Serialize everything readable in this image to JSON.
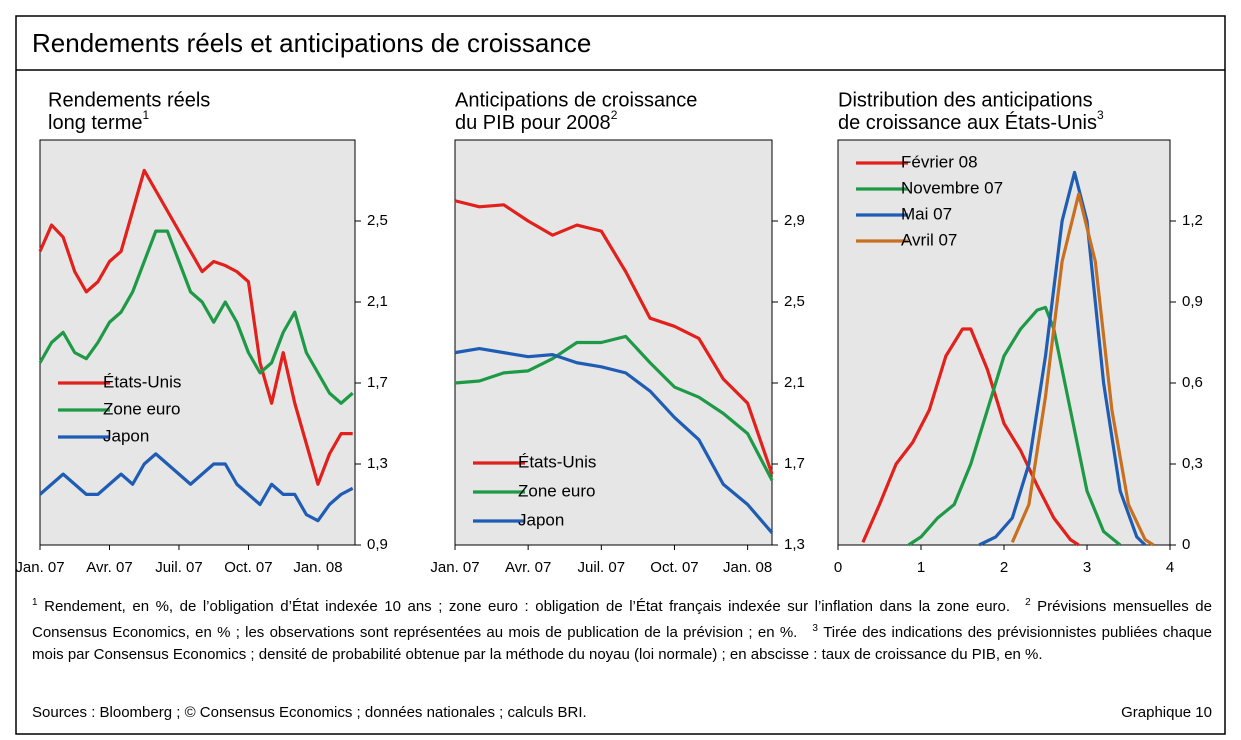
{
  "title": "Rendements réels et anticipations de croissance",
  "chart_data": [
    {
      "type": "line",
      "title": [
        "Rendements réels",
        "long terme"
      ],
      "title_note": "1",
      "x": [
        0,
        0.5,
        1,
        1.5,
        2,
        2.5,
        3,
        3.5,
        4,
        4.5,
        5,
        5.5,
        6,
        6.5,
        7,
        7.5,
        8,
        8.5,
        9,
        9.5,
        10,
        10.5,
        11,
        11.5,
        12,
        12.5,
        13,
        13.5
      ],
      "xlim": [
        0,
        13.6
      ],
      "xticks": [
        {
          "value": 0,
          "label": "Jan. 07"
        },
        {
          "value": 3,
          "label": "Avr. 07"
        },
        {
          "value": 6,
          "label": "Juil. 07"
        },
        {
          "value": 9,
          "label": "Oct. 07"
        },
        {
          "value": 12,
          "label": "Jan. 08"
        }
      ],
      "ylim": [
        0.9,
        2.9
      ],
      "yticks": [
        {
          "value": 0.9,
          "label": "0,9"
        },
        {
          "value": 1.3,
          "label": "1,3"
        },
        {
          "value": 1.7,
          "label": "1,7"
        },
        {
          "value": 2.1,
          "label": "2,1"
        },
        {
          "value": 2.5,
          "label": "2,5"
        }
      ],
      "legend": "center-left",
      "series": [
        {
          "name": "États-Unis",
          "color": "#e2211c",
          "values": [
            2.35,
            2.48,
            2.42,
            2.25,
            2.15,
            2.2,
            2.3,
            2.35,
            2.55,
            2.75,
            2.65,
            2.55,
            2.45,
            2.35,
            2.25,
            2.3,
            2.28,
            2.25,
            2.2,
            1.8,
            1.6,
            1.85,
            1.6,
            1.4,
            1.2,
            1.35,
            1.45,
            1.45
          ]
        },
        {
          "name": "Zone euro",
          "color": "#1e9a47",
          "values": [
            1.8,
            1.9,
            1.95,
            1.85,
            1.82,
            1.9,
            2.0,
            2.05,
            2.15,
            2.3,
            2.45,
            2.45,
            2.3,
            2.15,
            2.1,
            2.0,
            2.1,
            2.0,
            1.85,
            1.75,
            1.8,
            1.95,
            2.05,
            1.85,
            1.75,
            1.65,
            1.6,
            1.65
          ]
        },
        {
          "name": "Japon",
          "color": "#1f5db4",
          "values": [
            1.15,
            1.2,
            1.25,
            1.2,
            1.15,
            1.15,
            1.2,
            1.25,
            1.2,
            1.3,
            1.35,
            1.3,
            1.25,
            1.2,
            1.25,
            1.3,
            1.3,
            1.2,
            1.15,
            1.1,
            1.2,
            1.15,
            1.15,
            1.05,
            1.02,
            1.1,
            1.15,
            1.18
          ]
        }
      ]
    },
    {
      "type": "line",
      "title": [
        "Anticipations de croissance",
        "du PIB pour 2008"
      ],
      "title_note": "2",
      "x": [
        0,
        1,
        2,
        3,
        4,
        5,
        6,
        7,
        8,
        9,
        10,
        11,
        12,
        13
      ],
      "xlim": [
        0,
        13
      ],
      "xticks": [
        {
          "value": 0,
          "label": "Jan. 07"
        },
        {
          "value": 3,
          "label": "Avr. 07"
        },
        {
          "value": 6,
          "label": "Juil. 07"
        },
        {
          "value": 9,
          "label": "Oct. 07"
        },
        {
          "value": 12,
          "label": "Jan. 08"
        }
      ],
      "ylim": [
        1.3,
        3.3
      ],
      "yticks": [
        {
          "value": 1.3,
          "label": "1,3"
        },
        {
          "value": 1.7,
          "label": "1,7"
        },
        {
          "value": 2.1,
          "label": "2,1"
        },
        {
          "value": 2.5,
          "label": "2,5"
        },
        {
          "value": 2.9,
          "label": "2,9"
        }
      ],
      "legend": "lower-left",
      "series": [
        {
          "name": "États-Unis",
          "color": "#e2211c",
          "values": [
            3.0,
            2.97,
            2.98,
            2.9,
            2.83,
            2.88,
            2.85,
            2.65,
            2.42,
            2.38,
            2.32,
            2.12,
            2.0,
            1.65
          ]
        },
        {
          "name": "Zone euro",
          "color": "#1e9a47",
          "values": [
            2.1,
            2.11,
            2.15,
            2.16,
            2.22,
            2.3,
            2.3,
            2.33,
            2.2,
            2.08,
            2.03,
            1.95,
            1.85,
            1.62
          ]
        },
        {
          "name": "Japon",
          "color": "#1f5db4",
          "values": [
            2.25,
            2.27,
            2.25,
            2.23,
            2.24,
            2.2,
            2.18,
            2.15,
            2.06,
            1.93,
            1.82,
            1.6,
            1.5,
            1.36
          ]
        }
      ]
    },
    {
      "type": "line",
      "title": [
        "Distribution des anticipations",
        "de croissance aux États-Unis"
      ],
      "title_note": "3",
      "xlim": [
        0,
        4
      ],
      "xticks": [
        0,
        1,
        2,
        3,
        4
      ],
      "ylim": [
        0,
        1.5
      ],
      "yticks": [
        0,
        {
          "value": 0.3,
          "label": "0,3"
        },
        {
          "value": 0.6,
          "label": "0,6"
        },
        {
          "value": 0.9,
          "label": "0,9"
        },
        {
          "value": 1.2,
          "label": "1,2"
        }
      ],
      "legend": "upper-left",
      "series": [
        {
          "name": "Février 08",
          "color": "#e2211c",
          "x": [
            0.3,
            0.5,
            0.7,
            0.9,
            1.1,
            1.3,
            1.5,
            1.6,
            1.8,
            2.0,
            2.2,
            2.4,
            2.6,
            2.8,
            2.9
          ],
          "values": [
            0.01,
            0.15,
            0.3,
            0.38,
            0.5,
            0.7,
            0.8,
            0.8,
            0.65,
            0.45,
            0.35,
            0.22,
            0.1,
            0.02,
            0
          ]
        },
        {
          "name": "Novembre 07",
          "color": "#1e9a47",
          "x": [
            0.85,
            1.0,
            1.2,
            1.4,
            1.6,
            1.8,
            2.0,
            2.2,
            2.4,
            2.5,
            2.6,
            2.8,
            3.0,
            3.2,
            3.4
          ],
          "values": [
            0,
            0.03,
            0.1,
            0.15,
            0.3,
            0.5,
            0.7,
            0.8,
            0.87,
            0.88,
            0.8,
            0.5,
            0.2,
            0.05,
            0
          ]
        },
        {
          "name": "Mai 07",
          "color": "#1f5db4",
          "x": [
            1.7,
            1.9,
            2.1,
            2.3,
            2.5,
            2.7,
            2.85,
            3.0,
            3.2,
            3.4,
            3.6,
            3.7
          ],
          "values": [
            0,
            0.03,
            0.1,
            0.3,
            0.7,
            1.2,
            1.38,
            1.2,
            0.6,
            0.2,
            0.03,
            0
          ]
        },
        {
          "name": "Avril 07",
          "color": "#c8701f",
          "x": [
            2.1,
            2.3,
            2.5,
            2.7,
            2.9,
            3.1,
            3.3,
            3.5,
            3.7,
            3.8
          ],
          "values": [
            0.01,
            0.15,
            0.55,
            1.05,
            1.3,
            1.05,
            0.5,
            0.15,
            0.02,
            0
          ]
        }
      ]
    }
  ],
  "footnotes": [
    {
      "mark": "1",
      "text": "Rendement, en %, de l’obligation d’État indexée 10 ans ; zone euro : obligation de l’État français indexée sur l’inflation dans la zone euro."
    },
    {
      "mark": "2",
      "text": "Prévisions mensuelles de Consensus Economics, en % ; les observations sont représentées au mois de publication de la prévision ; en %."
    },
    {
      "mark": "3",
      "text": "Tirée des indications des prévisionnistes publiées chaque mois par Consensus Economics ; densité de probabilité obtenue par la méthode du noyau (loi normale) ; en abscisse : taux de croissance du PIB, en %."
    }
  ],
  "sources": "Sources : Bloomberg ; © Consensus Economics ; données nationales ; calculs BRI.",
  "figure_label": "Graphique 10"
}
